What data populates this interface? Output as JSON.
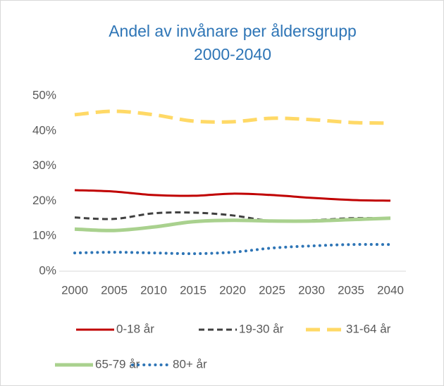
{
  "chart_data": {
    "type": "line",
    "title": [
      "Andel av invånare per åldersgrupp",
      "2000-2040"
    ],
    "x": [
      2000,
      2005,
      2010,
      2015,
      2020,
      2025,
      2030,
      2035,
      2040
    ],
    "xlim": [
      2000,
      2040
    ],
    "xticks": [
      2000,
      2005,
      2010,
      2015,
      2020,
      2025,
      2030,
      2035,
      2040
    ],
    "ylim": [
      0,
      50
    ],
    "yticks": [
      {
        "value": 0,
        "label": "0%"
      },
      {
        "value": 10,
        "label": "10%"
      },
      {
        "value": 20,
        "label": "20%"
      },
      {
        "value": 30,
        "label": "30%"
      },
      {
        "value": 40,
        "label": "40%"
      },
      {
        "value": 50,
        "label": "50%"
      }
    ],
    "grid": false,
    "legend": "bottom",
    "series": [
      {
        "name": "0-18 år",
        "color": "#c00000",
        "values": [
          23.1,
          22.7,
          21.7,
          21.5,
          22.1,
          21.7,
          20.9,
          20.3,
          20.1
        ]
      },
      {
        "name": "19-30 år",
        "color": "#404040",
        "values": [
          15.3,
          14.9,
          16.5,
          16.7,
          15.9,
          14.3,
          14.5,
          15.1,
          15.1
        ]
      },
      {
        "name": "31-64 år",
        "color": "#ffd966",
        "values": [
          44.6,
          45.6,
          44.6,
          42.8,
          42.6,
          43.6,
          43.2,
          42.4,
          42.2
        ]
      },
      {
        "name": "65-79 år",
        "color": "#a9d18e",
        "values": [
          12.0,
          11.6,
          12.6,
          14.1,
          14.5,
          14.3,
          14.3,
          14.7,
          15.1
        ]
      },
      {
        "name": "80+ år",
        "color": "#2e75b6",
        "values": [
          5.2,
          5.4,
          5.2,
          5.0,
          5.4,
          6.6,
          7.2,
          7.6,
          7.6
        ]
      }
    ]
  }
}
